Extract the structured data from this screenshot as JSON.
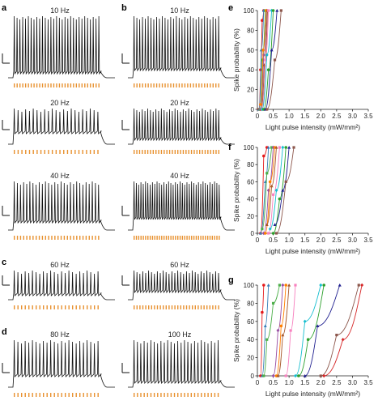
{
  "colors": {
    "trace": "#111111",
    "light_pulse": "#e8912f",
    "axis": "#222222",
    "series": [
      "#e41a1c",
      "#377eb8",
      "#4daf4a",
      "#984ea3",
      "#ff7f00",
      "#a65628",
      "#f781bf",
      "#17becf",
      "#2ca02c",
      "#1f1f8f",
      "#8c564b",
      "#d62728",
      "#000000",
      "#9467bd"
    ]
  },
  "panels": [
    {
      "letter": "a",
      "label": "10 Hz"
    },
    {
      "letter": "b",
      "label": "10 Hz"
    },
    {
      "letter": "",
      "label": "20 Hz"
    },
    {
      "letter": "",
      "label": "20 Hz"
    },
    {
      "letter": "",
      "label": "40 Hz"
    },
    {
      "letter": "",
      "label": "40 Hz"
    },
    {
      "letter": "c",
      "label": "60 Hz"
    },
    {
      "letter": "",
      "label": "60 Hz"
    },
    {
      "letter": "d",
      "label": "80 Hz"
    },
    {
      "letter": "",
      "label": "100 Hz"
    }
  ],
  "chart_data": [
    {
      "type": "line",
      "letter": "e",
      "xlabel": "Light pulse intensity (mW/mm²)",
      "ylabel": "Spike probability (%)",
      "xlim": [
        0,
        3.5
      ],
      "ylim": [
        0,
        100
      ],
      "xticks": [
        "0",
        "0.5",
        "1.0",
        "1.5",
        "2.0",
        "2.5",
        "3.0",
        "3.5"
      ],
      "yticks": [
        "0",
        "20",
        "40",
        "60",
        "80",
        "100"
      ],
      "series": [
        {
          "x": [
            0.05,
            0.1,
            0.15,
            0.2
          ],
          "y": [
            0,
            40,
            90,
            100
          ]
        },
        {
          "x": [
            0.05,
            0.12,
            0.2
          ],
          "y": [
            0,
            60,
            100
          ]
        },
        {
          "x": [
            0.08,
            0.15,
            0.25
          ],
          "y": [
            0,
            50,
            100
          ]
        },
        {
          "x": [
            0.1,
            0.2,
            0.3
          ],
          "y": [
            0,
            55,
            100
          ]
        },
        {
          "x": [
            0.1,
            0.18,
            0.28
          ],
          "y": [
            5,
            60,
            100
          ]
        },
        {
          "x": [
            0.12,
            0.22,
            0.32
          ],
          "y": [
            0,
            45,
            100
          ]
        },
        {
          "x": [
            0.15,
            0.25,
            0.35
          ],
          "y": [
            0,
            50,
            100
          ]
        },
        {
          "x": [
            0.15,
            0.3,
            0.45
          ],
          "y": [
            0,
            55,
            100
          ]
        },
        {
          "x": [
            0.2,
            0.35,
            0.5
          ],
          "y": [
            0,
            40,
            100
          ]
        },
        {
          "x": [
            0.25,
            0.45,
            0.62
          ],
          "y": [
            0,
            60,
            100
          ]
        },
        {
          "x": [
            0.3,
            0.55,
            0.75
          ],
          "y": [
            0,
            50,
            100
          ]
        }
      ]
    },
    {
      "type": "line",
      "letter": "f",
      "xlabel": "Light pulse intensity (mW/mm²)",
      "ylabel": "Spike probability (%)",
      "xlim": [
        0,
        3.5
      ],
      "ylim": [
        0,
        100
      ],
      "xticks": [
        "0",
        "0.5",
        "1.0",
        "1.5",
        "2.0",
        "2.5",
        "3.0",
        "3.5"
      ],
      "yticks": [
        "0",
        "20",
        "40",
        "60",
        "80",
        "100"
      ],
      "series": [
        {
          "x": [
            0.1,
            0.2,
            0.3
          ],
          "y": [
            0,
            90,
            100
          ]
        },
        {
          "x": [
            0.1,
            0.25,
            0.35
          ],
          "y": [
            0,
            60,
            100
          ]
        },
        {
          "x": [
            0.15,
            0.3,
            0.45
          ],
          "y": [
            5,
            70,
            100
          ]
        },
        {
          "x": [
            0.2,
            0.35,
            0.5
          ],
          "y": [
            0,
            50,
            100
          ]
        },
        {
          "x": [
            0.25,
            0.4,
            0.55
          ],
          "y": [
            0,
            60,
            100
          ]
        },
        {
          "x": [
            0.3,
            0.45,
            0.6
          ],
          "y": [
            10,
            55,
            100
          ]
        },
        {
          "x": [
            0.35,
            0.5,
            0.7
          ],
          "y": [
            0,
            45,
            100
          ]
        },
        {
          "x": [
            0.4,
            0.6,
            0.8
          ],
          "y": [
            5,
            50,
            100
          ]
        },
        {
          "x": [
            0.5,
            0.7,
            0.9
          ],
          "y": [
            0,
            40,
            100
          ]
        },
        {
          "x": [
            0.55,
            0.8,
            1.0
          ],
          "y": [
            10,
            50,
            100
          ]
        },
        {
          "x": [
            0.6,
            0.9,
            1.15
          ],
          "y": [
            0,
            60,
            100
          ]
        }
      ]
    },
    {
      "type": "line",
      "letter": "g",
      "xlabel": "Light pulse intensity (mW/mm²)",
      "ylabel": "Spike probability (%)",
      "xlim": [
        0,
        3.5
      ],
      "ylim": [
        0,
        100
      ],
      "xticks": [
        "0",
        "0.5",
        "1.0",
        "1.5",
        "2.0",
        "2.5",
        "3.0",
        "3.5"
      ],
      "yticks": [
        "0",
        "20",
        "40",
        "60",
        "80",
        "100"
      ],
      "series": [
        {
          "x": [
            0.1,
            0.15,
            0.2
          ],
          "y": [
            0,
            70,
            100
          ]
        },
        {
          "x": [
            0.15,
            0.25,
            0.35
          ],
          "y": [
            0,
            55,
            100
          ]
        },
        {
          "x": [
            0.2,
            0.3,
            0.5,
            0.7
          ],
          "y": [
            0,
            40,
            80,
            100
          ]
        },
        {
          "x": [
            0.5,
            0.65,
            0.8
          ],
          "y": [
            0,
            50,
            100
          ]
        },
        {
          "x": [
            0.6,
            0.75,
            0.9
          ],
          "y": [
            0,
            55,
            100
          ]
        },
        {
          "x": [
            0.65,
            0.8,
            1.0
          ],
          "y": [
            0,
            45,
            100
          ]
        },
        {
          "x": [
            0.9,
            1.05,
            1.2
          ],
          "y": [
            0,
            50,
            100
          ]
        },
        {
          "x": [
            1.2,
            1.5,
            2.0
          ],
          "y": [
            0,
            60,
            100
          ]
        },
        {
          "x": [
            1.3,
            1.6,
            2.1
          ],
          "y": [
            0,
            40,
            100
          ]
        },
        {
          "x": [
            1.5,
            1.9,
            2.6
          ],
          "y": [
            0,
            55,
            100
          ]
        },
        {
          "x": [
            2.0,
            2.5,
            3.2
          ],
          "y": [
            0,
            45,
            100
          ]
        },
        {
          "x": [
            2.1,
            2.7,
            3.3
          ],
          "y": [
            0,
            40,
            100
          ]
        }
      ]
    }
  ]
}
